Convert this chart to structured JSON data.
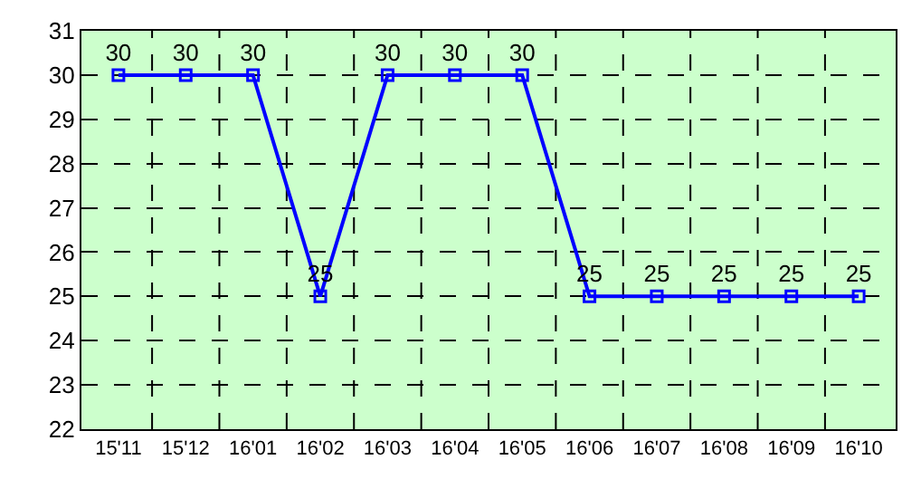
{
  "chart_data": {
    "type": "line",
    "categories": [
      "15'11",
      "15'12",
      "16'01",
      "16'02",
      "16'03",
      "16'04",
      "16'05",
      "16'06",
      "16'07",
      "16'08",
      "16'09",
      "16'10"
    ],
    "series": [
      {
        "color": "#0000ff",
        "values": [
          30,
          30,
          30,
          25,
          30,
          30,
          30,
          25,
          25,
          25,
          25,
          25
        ]
      }
    ],
    "ylim": [
      22,
      31
    ],
    "yticks": [
      22,
      23,
      24,
      25,
      26,
      27,
      28,
      29,
      30,
      31
    ],
    "grid": true,
    "marker": "square",
    "line_style": "solid",
    "data_labels": true,
    "legend": false
  }
}
